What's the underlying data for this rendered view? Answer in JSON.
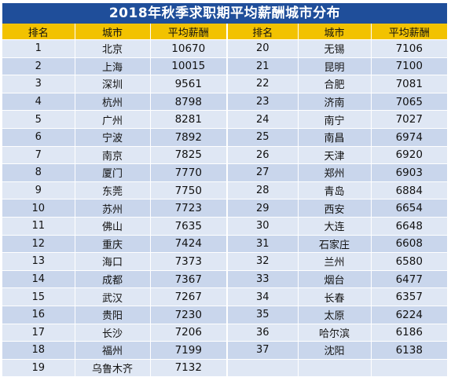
{
  "title": "2018年秋季求职期平均薪酬城市分布",
  "headers": [
    "排名",
    "城市",
    "平均薪酬",
    "排名",
    "城市",
    "平均薪酬"
  ],
  "left_rows": [
    {
      "rank": "1",
      "city": "北京",
      "salary": "10670"
    },
    {
      "rank": "2",
      "city": "上海",
      "salary": "10015"
    },
    {
      "rank": "3",
      "city": "深圳",
      "salary": "9561"
    },
    {
      "rank": "4",
      "city": "杭州",
      "salary": "8798"
    },
    {
      "rank": "5",
      "city": "广州",
      "salary": "8281"
    },
    {
      "rank": "6",
      "city": "宁波",
      "salary": "7892"
    },
    {
      "rank": "7",
      "city": "南京",
      "salary": "7825"
    },
    {
      "rank": "8",
      "city": "厦门",
      "salary": "7770"
    },
    {
      "rank": "9",
      "city": "东莞",
      "salary": "7750"
    },
    {
      "rank": "10",
      "city": "苏州",
      "salary": "7723"
    },
    {
      "rank": "11",
      "city": "佛山",
      "salary": "7635"
    },
    {
      "rank": "12",
      "city": "重庆",
      "salary": "7424"
    },
    {
      "rank": "13",
      "city": "海口",
      "salary": "7373"
    },
    {
      "rank": "14",
      "city": "成都",
      "salary": "7367"
    },
    {
      "rank": "15",
      "city": "武汉",
      "salary": "7267"
    },
    {
      "rank": "16",
      "city": "贵阳",
      "salary": "7230"
    },
    {
      "rank": "17",
      "city": "长沙",
      "salary": "7206"
    },
    {
      "rank": "18",
      "city": "福州",
      "salary": "7199"
    },
    {
      "rank": "19",
      "city": "乌鲁木齐",
      "salary": "7132"
    }
  ],
  "right_rows": [
    {
      "rank": "20",
      "city": "无锡",
      "salary": "7106"
    },
    {
      "rank": "21",
      "city": "昆明",
      "salary": "7100"
    },
    {
      "rank": "22",
      "city": "合肥",
      "salary": "7081"
    },
    {
      "rank": "23",
      "city": "济南",
      "salary": "7065"
    },
    {
      "rank": "24",
      "city": "南宁",
      "salary": "7027"
    },
    {
      "rank": "25",
      "city": "南昌",
      "salary": "6974"
    },
    {
      "rank": "26",
      "city": "天津",
      "salary": "6920"
    },
    {
      "rank": "27",
      "city": "郑州",
      "salary": "6903"
    },
    {
      "rank": "28",
      "city": "青岛",
      "salary": "6884"
    },
    {
      "rank": "29",
      "city": "西安",
      "salary": "6654"
    },
    {
      "rank": "30",
      "city": "大连",
      "salary": "6648"
    },
    {
      "rank": "31",
      "city": "石家庄",
      "salary": "6608"
    },
    {
      "rank": "32",
      "city": "兰州",
      "salary": "6580"
    },
    {
      "rank": "33",
      "city": "烟台",
      "salary": "6477"
    },
    {
      "rank": "34",
      "city": "长春",
      "salary": "6357"
    },
    {
      "rank": "35",
      "city": "太原",
      "salary": "6224"
    },
    {
      "rank": "36",
      "city": "哈尔滨",
      "salary": "6186"
    },
    {
      "rank": "37",
      "city": "沈阳",
      "salary": "6138"
    },
    {
      "rank": "",
      "city": "",
      "salary": ""
    }
  ],
  "colors": {
    "title_bg": "#1f4e9a",
    "header_bg": "#f2c200",
    "row_light": "#dfe7f4",
    "row_dark": "#c9d6ec"
  }
}
